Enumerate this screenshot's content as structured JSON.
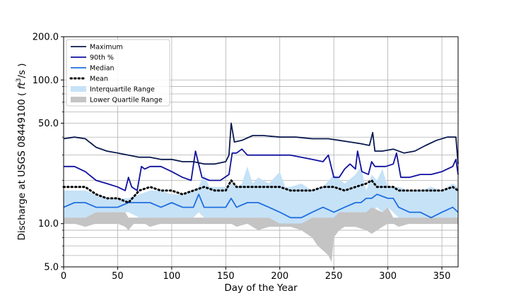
{
  "chart_data": {
    "type": "line",
    "title": "",
    "xlabel": "Day of the Year",
    "ylabel_prefix": "Discharge at USGS 08449100 ( ",
    "ylabel_unit": "ft",
    "ylabel_exp": "3",
    "ylabel_suffix": "/s )",
    "xlim": [
      0,
      365
    ],
    "ylim": [
      5.0,
      200.0
    ],
    "yscale": "log",
    "grid": true,
    "legend_position": "top-left",
    "x_ticks": [
      0,
      50,
      100,
      150,
      200,
      250,
      300,
      350
    ],
    "x_tick_labels": [
      "0",
      "50",
      "100",
      "150",
      "200",
      "250",
      "300",
      "350"
    ],
    "y_ticks": [
      5.0,
      10.0,
      50.0,
      100.0,
      200.0
    ],
    "y_tick_labels": [
      "5.0",
      "10.0",
      "50.0",
      "100.0",
      "200.0"
    ],
    "y_minor_ticks": [
      6,
      7,
      8,
      9,
      20,
      30,
      40,
      60,
      70,
      80,
      90
    ],
    "legend": [
      {
        "label": "Maximum",
        "kind": "line",
        "color": "#0b1a4f",
        "dash": "solid"
      },
      {
        "label": "90th %",
        "kind": "line",
        "color": "#1010a0",
        "dash": "solid"
      },
      {
        "label": "Median",
        "kind": "line",
        "color": "#1f6fe0",
        "dash": "solid"
      },
      {
        "label": "Mean",
        "kind": "line",
        "color": "#000000",
        "dash": "dotted"
      },
      {
        "label": "Interquartile Range",
        "kind": "patch",
        "color": "#c6e2f7"
      },
      {
        "label": "Lower Quartile Range",
        "kind": "patch",
        "color": "#c4c4c4"
      }
    ],
    "series": [
      {
        "name": "Maximum",
        "x": [
          0,
          10,
          20,
          30,
          40,
          50,
          60,
          70,
          80,
          90,
          100,
          110,
          120,
          130,
          140,
          150,
          153,
          155,
          158,
          165,
          175,
          185,
          200,
          215,
          230,
          245,
          255,
          265,
          275,
          283,
          286,
          288,
          295,
          305,
          315,
          325,
          335,
          345,
          355,
          363,
          365
        ],
        "y": [
          39,
          40,
          39,
          34,
          32,
          31,
          30,
          29,
          29,
          28,
          28,
          27,
          27,
          26,
          26,
          27,
          30,
          50,
          37,
          38,
          41,
          41,
          40,
          40,
          39,
          39,
          38,
          37,
          36,
          35,
          43,
          32,
          32,
          33,
          31,
          32,
          35,
          38,
          40,
          40,
          26
        ]
      },
      {
        "name": "90th %",
        "x": [
          0,
          10,
          20,
          30,
          40,
          50,
          57,
          60,
          63,
          68,
          72,
          75,
          80,
          90,
          100,
          110,
          118,
          122,
          128,
          135,
          145,
          153,
          156,
          160,
          165,
          170,
          175,
          185,
          200,
          210,
          220,
          230,
          240,
          245,
          250,
          255,
          260,
          265,
          270,
          272,
          276,
          282,
          285,
          288,
          292,
          298,
          305,
          308,
          312,
          320,
          330,
          340,
          350,
          360,
          363,
          365
        ],
        "y": [
          25,
          25,
          23,
          20,
          19,
          18,
          17,
          21,
          18,
          17,
          25,
          24,
          25,
          25,
          23,
          21,
          20,
          32,
          21,
          20,
          20,
          22,
          31,
          31,
          33,
          30,
          30,
          30,
          30,
          30,
          29,
          28,
          27,
          30,
          21,
          21,
          24,
          26,
          24,
          32,
          23,
          22,
          27,
          25,
          25,
          25,
          26,
          31,
          21,
          21,
          22,
          22,
          23,
          25,
          28,
          22
        ]
      },
      {
        "name": "Median",
        "x": [
          0,
          10,
          20,
          30,
          40,
          50,
          60,
          70,
          80,
          90,
          100,
          110,
          120,
          125,
          130,
          140,
          150,
          155,
          160,
          170,
          180,
          190,
          200,
          210,
          220,
          230,
          240,
          250,
          260,
          270,
          275,
          280,
          285,
          290,
          300,
          305,
          310,
          320,
          330,
          340,
          350,
          360,
          365
        ],
        "y": [
          13,
          14,
          14,
          13,
          13,
          13,
          14,
          14,
          14,
          13,
          14,
          13,
          13,
          16,
          13,
          13,
          13,
          15,
          13,
          14,
          14,
          13,
          12,
          11,
          11,
          12,
          13,
          12,
          13,
          14,
          14,
          15,
          15,
          16,
          15,
          15,
          13,
          12,
          12,
          11,
          12,
          13,
          12
        ]
      },
      {
        "name": "Mean",
        "x": [
          0,
          10,
          20,
          30,
          40,
          50,
          60,
          70,
          80,
          90,
          100,
          110,
          120,
          130,
          140,
          150,
          155,
          160,
          170,
          180,
          190,
          200,
          210,
          220,
          230,
          240,
          250,
          260,
          270,
          280,
          285,
          290,
          300,
          305,
          310,
          320,
          330,
          340,
          350,
          360,
          365
        ],
        "y": [
          18,
          18,
          18,
          16,
          15,
          15,
          14,
          17,
          18,
          17,
          17,
          16,
          17,
          18,
          17,
          17,
          20,
          18,
          18,
          18,
          18,
          18,
          17,
          17,
          17,
          18,
          18,
          17,
          18,
          19,
          20,
          18,
          18,
          18,
          17,
          17,
          17,
          17,
          17,
          18,
          17
        ]
      },
      {
        "name": "Interquartile Range",
        "x": [
          0,
          10,
          20,
          30,
          40,
          50,
          60,
          70,
          80,
          90,
          100,
          110,
          120,
          125,
          130,
          135,
          140,
          150,
          155,
          160,
          165,
          170,
          175,
          180,
          190,
          200,
          205,
          210,
          220,
          230,
          240,
          250,
          260,
          270,
          275,
          280,
          285,
          290,
          295,
          300,
          310,
          320,
          330,
          340,
          350,
          360,
          365
        ],
        "upper": [
          17,
          17,
          17,
          16,
          15,
          15,
          15,
          16,
          17,
          17,
          16,
          16,
          17,
          18,
          22,
          18,
          18,
          18,
          19,
          18,
          19,
          25,
          19,
          21,
          19,
          23,
          18,
          18,
          19,
          17,
          18,
          22,
          19,
          22,
          25,
          17,
          22,
          20,
          24,
          18,
          18,
          17,
          17,
          18,
          17,
          19,
          18
        ],
        "lower": [
          11,
          11,
          11,
          12,
          12,
          12,
          12,
          11,
          11,
          11,
          11,
          11,
          11,
          12,
          11,
          11,
          11,
          11,
          11,
          11,
          11,
          11,
          11,
          11,
          11,
          10,
          10,
          10,
          10,
          11,
          11,
          11,
          12,
          12,
          12,
          12,
          12,
          13,
          12,
          13,
          11,
          11,
          11,
          11,
          11,
          11,
          11
        ]
      },
      {
        "name": "Lower Quartile Range",
        "x": [
          0,
          10,
          20,
          30,
          40,
          50,
          57,
          60,
          65,
          70,
          75,
          80,
          90,
          100,
          110,
          120,
          130,
          140,
          150,
          155,
          160,
          170,
          180,
          190,
          200,
          210,
          220,
          230,
          235,
          240,
          245,
          248,
          250,
          255,
          260,
          270,
          280,
          285,
          295,
          300,
          305,
          310,
          320,
          330,
          340,
          350,
          360,
          365
        ],
        "upper": [
          11,
          11,
          11,
          12,
          12,
          12,
          12,
          11,
          11,
          11,
          11,
          11,
          11,
          11,
          11,
          11,
          11,
          11,
          11,
          11,
          11,
          11,
          11,
          11,
          10,
          10,
          10,
          11,
          11,
          11,
          11,
          11,
          11,
          12,
          12,
          12,
          12,
          13,
          12,
          13,
          11,
          11,
          11,
          11,
          11,
          11,
          11,
          11
        ],
        "lower": [
          10,
          10,
          9.5,
          10,
          10,
          10,
          9.5,
          9,
          10,
          10,
          10,
          9.5,
          10,
          10,
          10,
          10,
          10,
          10,
          10,
          10,
          9.5,
          10,
          9,
          9.5,
          9.5,
          9.5,
          9,
          8,
          7,
          6.5,
          6,
          5.4,
          8,
          9,
          9.5,
          9.5,
          9,
          8.5,
          9.5,
          10,
          10,
          9.5,
          10,
          10,
          10,
          10,
          10,
          10
        ]
      }
    ]
  }
}
